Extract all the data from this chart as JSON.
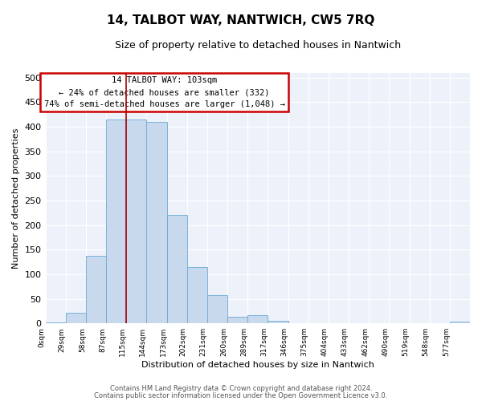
{
  "title": "14, TALBOT WAY, NANTWICH, CW5 7RQ",
  "subtitle": "Size of property relative to detached houses in Nantwich",
  "xlabel": "Distribution of detached houses by size in Nantwich",
  "ylabel": "Number of detached properties",
  "bar_color": "#c8d9ee",
  "bar_edge_color": "#6aaad4",
  "background_color": "#edf2fa",
  "grid_color": "#ffffff",
  "bin_labels": [
    "0sqm",
    "29sqm",
    "58sqm",
    "87sqm",
    "115sqm",
    "144sqm",
    "173sqm",
    "202sqm",
    "231sqm",
    "260sqm",
    "289sqm",
    "317sqm",
    "346sqm",
    "375sqm",
    "404sqm",
    "433sqm",
    "462sqm",
    "490sqm",
    "519sqm",
    "548sqm",
    "577sqm"
  ],
  "bar_values": [
    2,
    22,
    137,
    415,
    415,
    410,
    220,
    115,
    57,
    14,
    16,
    6,
    1,
    1,
    0,
    0,
    1,
    0,
    0,
    0,
    3
  ],
  "ylim": [
    0,
    510
  ],
  "yticks": [
    0,
    50,
    100,
    150,
    200,
    250,
    300,
    350,
    400,
    450,
    500
  ],
  "property_label": "14 TALBOT WAY: 103sqm",
  "annotation_line1": "← 24% of detached houses are smaller (332)",
  "annotation_line2": "74% of semi-detached houses are larger (1,048) →",
  "red_line_x": 4.0,
  "red_line_color": "#aa0000",
  "annotation_box_edge_color": "#cc0000",
  "footer_line1": "Contains HM Land Registry data © Crown copyright and database right 2024.",
  "footer_line2": "Contains public sector information licensed under the Open Government Licence v3.0."
}
